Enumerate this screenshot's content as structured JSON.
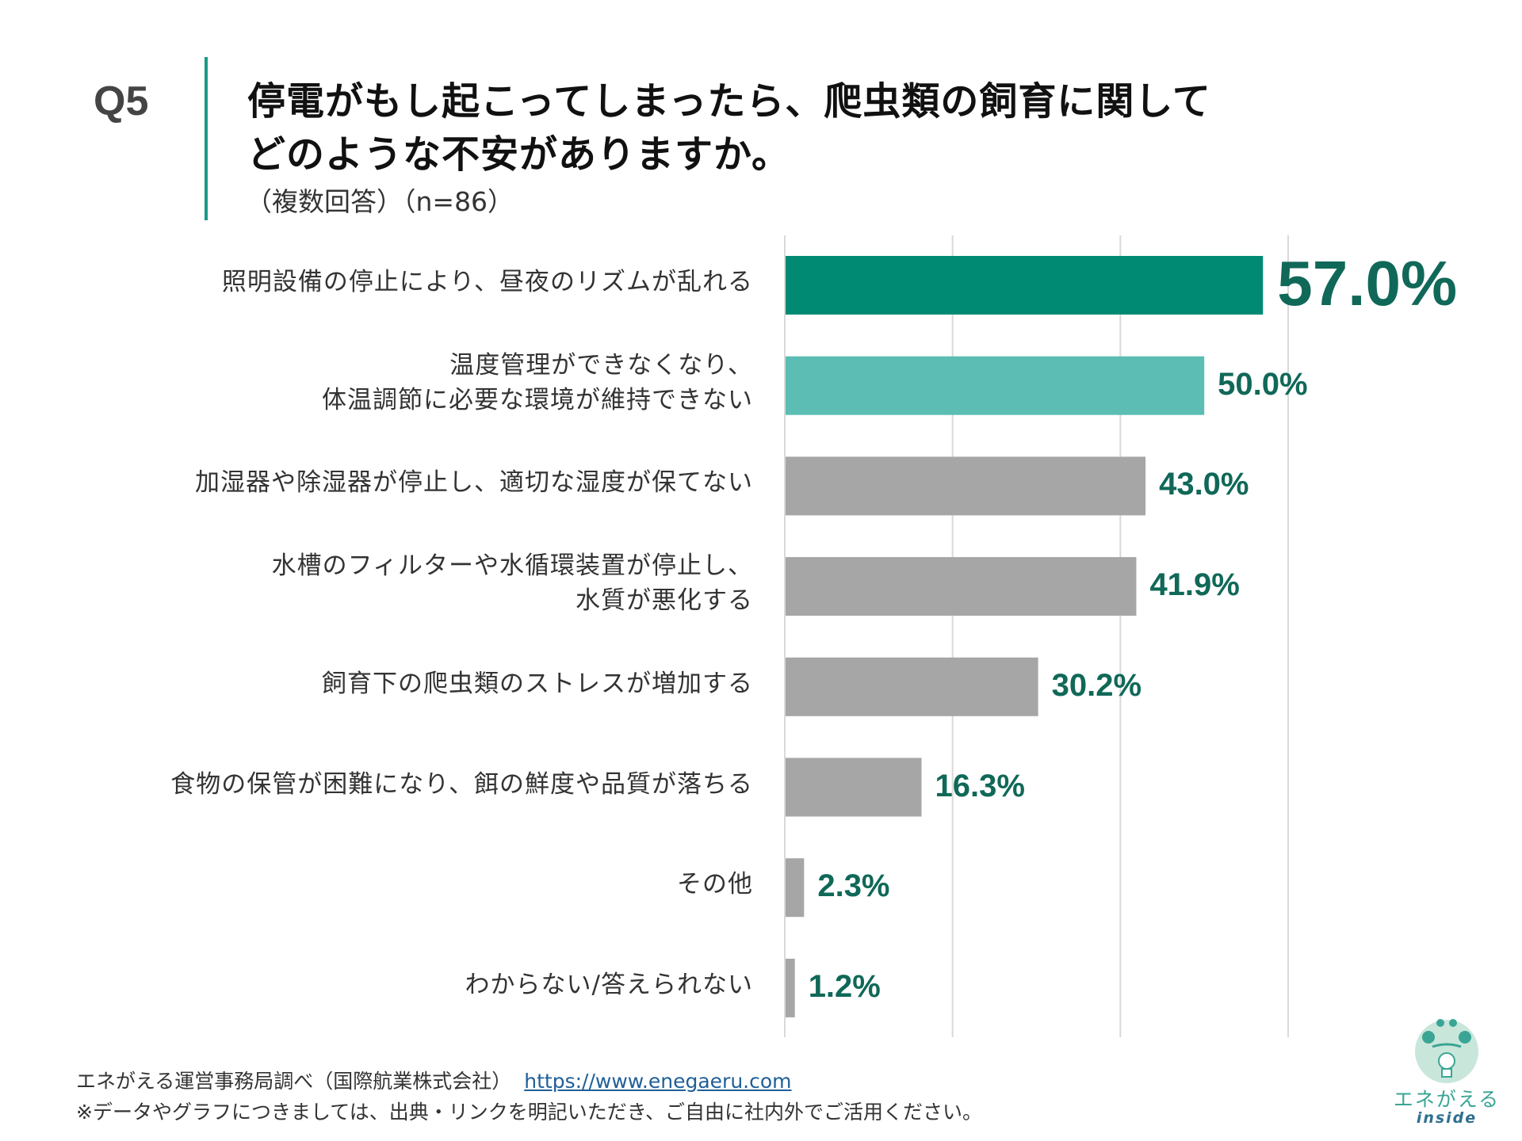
{
  "header": {
    "question_number": "Q5",
    "title_line1": "停電がもし起こってしまったら、爬虫類の飼育に関して",
    "title_line2": "どのような不安がありますか。",
    "subtitle": "（複数回答）（n=86）"
  },
  "chart_data": {
    "type": "bar",
    "orientation": "horizontal",
    "categories": [
      "照明設備の停止により、昼夜のリズムが乱れる",
      "温度管理ができなくなり、\n体温調節に必要な環境が維持できない",
      "加湿器や除湿器が停止し、適切な湿度が保てない",
      "水槽のフィルターや水循環装置が停止し、\n水質が悪化する",
      "飼育下の爬虫類のストレスが増加する",
      "食物の保管が困難になり、餌の鮮度や品質が落ちる",
      "その他",
      "わからない/答えられない"
    ],
    "values": [
      57.0,
      50.0,
      43.0,
      41.9,
      30.2,
      16.3,
      2.3,
      1.2
    ],
    "value_labels": [
      "57.0%",
      "50.0%",
      "43.0%",
      "41.9%",
      "30.2%",
      "16.3%",
      "2.3%",
      "1.2%"
    ],
    "unit": "%",
    "xlim": [
      0,
      60
    ],
    "gridlines": [
      0,
      20,
      40,
      60
    ],
    "grid": true,
    "bar_colors": [
      "#008a74",
      "#5bbdb3",
      "#a6a6a6",
      "#a6a6a6",
      "#a6a6a6",
      "#a6a6a6",
      "#a6a6a6",
      "#a6a6a6"
    ],
    "label_color": "#106858"
  },
  "footer": {
    "source": "エネがえる運営事務局調べ（国際航業株式会社）",
    "link": "https://www.enegaeru.com",
    "note": "※データやグラフにつきましては、出典・リンクを明記いただき、ご自由に社内外でご活用ください。"
  },
  "logo": {
    "text": "エネがえる",
    "sub": "inside"
  }
}
